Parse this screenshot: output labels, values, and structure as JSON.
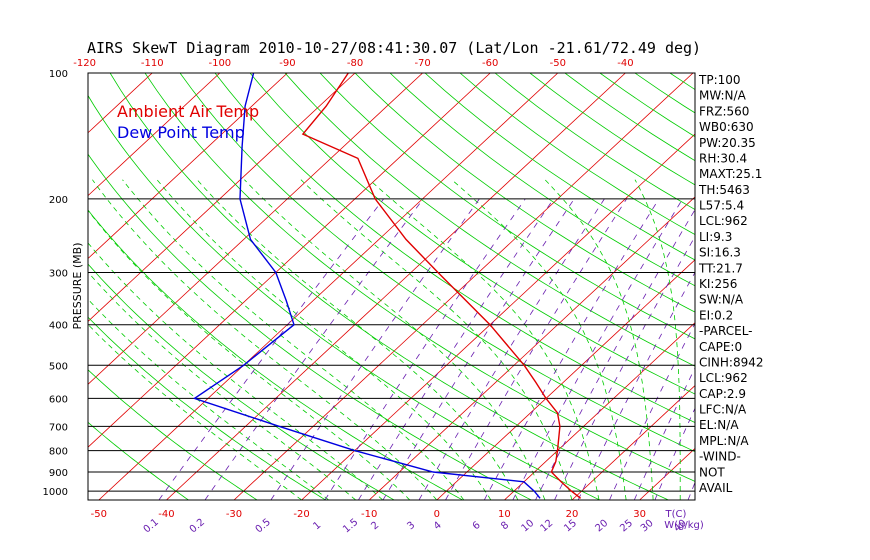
{
  "chart_data": {
    "type": "line",
    "title": "AIRS SkewT Diagram 2010-10-27/08:41:30.07 (Lat/Lon -21.61/72.49 deg)",
    "ylabel": "PRESSURE (MB)",
    "y_scale": "log",
    "ylim": [
      1050,
      100
    ],
    "pressure_ticks": [
      "100",
      "200",
      "300",
      "400",
      "500",
      "600",
      "700",
      "800",
      "900",
      "1000"
    ],
    "top_temp_ticks": [
      "-120",
      "-110",
      "-100",
      "-90",
      "-80",
      "-70",
      "-60",
      "-50",
      "-40"
    ],
    "bottom_temp_ticks": [
      "-50",
      "-40",
      "-30",
      "-20",
      "-10",
      "0",
      "10",
      "20",
      "30"
    ],
    "bottom_temp_unit": "T(C)",
    "mixing_ratio_ticks": [
      "0.1",
      "0.2",
      "0.5",
      "1",
      "1.5",
      "2",
      "3",
      "4",
      "6",
      "8",
      "10",
      "12",
      "15",
      "20",
      "25",
      "30",
      "40"
    ],
    "mixing_ratio_unit": "W(g/kg)",
    "legend": [
      {
        "label": "Ambient Air Temp",
        "color": "#e00000"
      },
      {
        "label": "Dew Point Temp",
        "color": "#0000e0"
      }
    ],
    "series": [
      {
        "name": "Ambient Air Temp",
        "color": "#e00000",
        "points": [
          {
            "p": 1040,
            "t": 21
          },
          {
            "p": 1000,
            "t": 18.5
          },
          {
            "p": 950,
            "t": 15.5
          },
          {
            "p": 900,
            "t": 12.5
          },
          {
            "p": 850,
            "t": 11.5
          },
          {
            "p": 800,
            "t": 10
          },
          {
            "p": 700,
            "t": 6.5
          },
          {
            "p": 650,
            "t": 4
          },
          {
            "p": 600,
            "t": 0
          },
          {
            "p": 550,
            "t": -4
          },
          {
            "p": 500,
            "t": -8.5
          },
          {
            "p": 400,
            "t": -20
          },
          {
            "p": 300,
            "t": -36
          },
          {
            "p": 250,
            "t": -46
          },
          {
            "p": 200,
            "t": -57
          },
          {
            "p": 160,
            "t": -66
          },
          {
            "p": 140,
            "t": -78
          },
          {
            "p": 120,
            "t": -79
          },
          {
            "p": 100,
            "t": -81
          }
        ]
      },
      {
        "name": "Dew Point Temp",
        "color": "#0000e0",
        "points": [
          {
            "p": 1040,
            "t": 15
          },
          {
            "p": 1000,
            "t": 13
          },
          {
            "p": 950,
            "t": 10
          },
          {
            "p": 900,
            "t": -5
          },
          {
            "p": 800,
            "t": -20
          },
          {
            "p": 700,
            "t": -35
          },
          {
            "p": 600,
            "t": -52
          },
          {
            "p": 500,
            "t": -50
          },
          {
            "p": 400,
            "t": -49
          },
          {
            "p": 350,
            "t": -54
          },
          {
            "p": 300,
            "t": -60
          },
          {
            "p": 250,
            "t": -69
          },
          {
            "p": 200,
            "t": -77
          },
          {
            "p": 150,
            "t": -85
          },
          {
            "p": 120,
            "t": -91
          },
          {
            "p": 100,
            "t": -95
          }
        ]
      }
    ],
    "stats": [
      "TP:100",
      "MW:N/A",
      "FRZ:560",
      "WB0:630",
      "PW:20.35",
      "RH:30.4",
      "MAXT:25.1",
      "TH:5463",
      "L57:5.4",
      "LCL:962",
      "LI:9.3",
      "SI:16.3",
      "TT:21.7",
      "KI:256",
      "SW:N/A",
      "EI:0.2",
      "-PARCEL-",
      "CAPE:0",
      "CINH:8942",
      "LCL:962",
      "CAP:2.9",
      "LFC:N/A",
      "EL:N/A",
      "MPL:N/A",
      "-WIND-",
      "NOT",
      "AVAIL"
    ],
    "colors": {
      "isotherm": "#e00000",
      "dry_adiabat": "#00cc00",
      "moist_adiabat": "#00cc00",
      "mixing_ratio": "#6a1fb0",
      "isobar": "#000000"
    }
  }
}
